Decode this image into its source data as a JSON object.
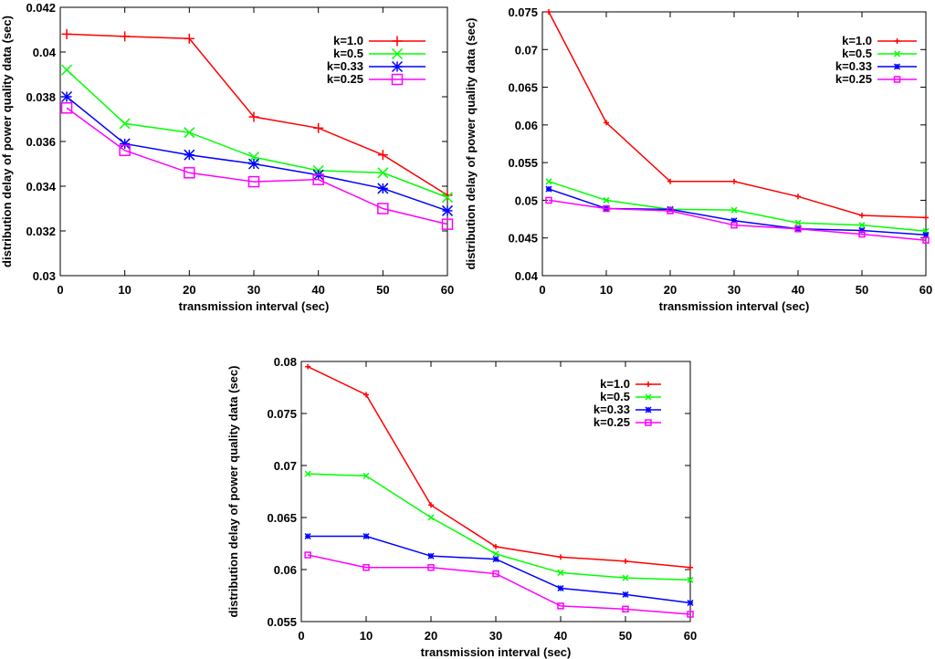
{
  "chart_data": [
    {
      "type": "line",
      "title": "",
      "xlabel": "transmission interval (sec)",
      "ylabel": "distribution delay of power quality data (sec)",
      "x": [
        1,
        10,
        20,
        30,
        40,
        50,
        60
      ],
      "xticks": [
        0,
        10,
        20,
        30,
        40,
        50,
        60
      ],
      "xlim": [
        0,
        60
      ],
      "ylim": [
        0.03,
        0.042
      ],
      "yticks": [
        0.03,
        0.032,
        0.034,
        0.036,
        0.038,
        0.04,
        0.042
      ],
      "ytick_labels": [
        "0.03",
        "0.032",
        "0.034",
        "0.036",
        "0.038",
        "0.04",
        "0.042"
      ],
      "legend_position": "top-right",
      "marker_size": "large",
      "series": [
        {
          "name": "k=1.0",
          "color": "#ff0000",
          "marker": "plus",
          "values": [
            0.0408,
            0.0407,
            0.0406,
            0.0371,
            0.0366,
            0.0354,
            0.0336
          ]
        },
        {
          "name": "k=0.5",
          "color": "#00ff00",
          "marker": "cross",
          "values": [
            0.0392,
            0.0368,
            0.0364,
            0.0353,
            0.0347,
            0.0346,
            0.0335
          ]
        },
        {
          "name": "k=0.33",
          "color": "#0000ff",
          "marker": "star",
          "values": [
            0.038,
            0.0359,
            0.0354,
            0.035,
            0.0345,
            0.0339,
            0.0329
          ]
        },
        {
          "name": "k=0.25",
          "color": "#ff00ff",
          "marker": "square",
          "values": [
            0.0375,
            0.0356,
            0.0346,
            0.0342,
            0.0343,
            0.033,
            0.0323
          ]
        }
      ]
    },
    {
      "type": "line",
      "title": "",
      "xlabel": "transmission interval (sec)",
      "ylabel": "distribution delay of power quality data (sec)",
      "x": [
        1,
        10,
        20,
        30,
        40,
        50,
        60
      ],
      "xticks": [
        0,
        10,
        20,
        30,
        40,
        50,
        60
      ],
      "xlim": [
        0,
        60
      ],
      "ylim": [
        0.04,
        0.075
      ],
      "yticks": [
        0.04,
        0.045,
        0.05,
        0.055,
        0.06,
        0.065,
        0.07,
        0.075
      ],
      "ytick_labels": [
        "0.04",
        "0.045",
        "0.05",
        "0.055",
        "0.06",
        "0.065",
        "0.07",
        "0.075"
      ],
      "legend_position": "top-right",
      "marker_size": "small",
      "series": [
        {
          "name": "k=1.0",
          "color": "#ff0000",
          "marker": "plus",
          "values": [
            0.075,
            0.0603,
            0.0525,
            0.0525,
            0.0505,
            0.048,
            0.0477
          ]
        },
        {
          "name": "k=0.5",
          "color": "#00ff00",
          "marker": "cross",
          "values": [
            0.0525,
            0.05,
            0.0488,
            0.0487,
            0.047,
            0.0467,
            0.0459
          ]
        },
        {
          "name": "k=0.33",
          "color": "#0000ff",
          "marker": "star",
          "values": [
            0.0515,
            0.0489,
            0.0488,
            0.0473,
            0.0462,
            0.046,
            0.0454
          ]
        },
        {
          "name": "k=0.25",
          "color": "#ff00ff",
          "marker": "square",
          "values": [
            0.05,
            0.0489,
            0.0486,
            0.0467,
            0.0462,
            0.0455,
            0.0447
          ]
        }
      ]
    },
    {
      "type": "line",
      "title": "",
      "xlabel": "transmission interval (sec)",
      "ylabel": "distribution delay of power quality data (sec)",
      "x": [
        1,
        10,
        20,
        30,
        40,
        50,
        60
      ],
      "xticks": [
        0,
        10,
        20,
        30,
        40,
        50,
        60
      ],
      "xlim": [
        0,
        60
      ],
      "ylim": [
        0.055,
        0.08
      ],
      "yticks": [
        0.055,
        0.06,
        0.065,
        0.07,
        0.075,
        0.08
      ],
      "ytick_labels": [
        "0.055",
        "0.06",
        "0.065",
        "0.07",
        "0.075",
        "0.08"
      ],
      "legend_position": "top-right",
      "marker_size": "small",
      "series": [
        {
          "name": "k=1.0",
          "color": "#ff0000",
          "marker": "plus",
          "values": [
            0.0795,
            0.0768,
            0.0662,
            0.0622,
            0.0612,
            0.0608,
            0.0602
          ]
        },
        {
          "name": "k=0.5",
          "color": "#00ff00",
          "marker": "cross",
          "values": [
            0.0692,
            0.069,
            0.065,
            0.0615,
            0.0597,
            0.0592,
            0.059
          ]
        },
        {
          "name": "k=0.33",
          "color": "#0000ff",
          "marker": "star",
          "values": [
            0.0632,
            0.0632,
            0.0613,
            0.061,
            0.0582,
            0.0576,
            0.0568
          ]
        },
        {
          "name": "k=0.25",
          "color": "#ff00ff",
          "marker": "square",
          "values": [
            0.0614,
            0.0602,
            0.0602,
            0.0596,
            0.0565,
            0.0562,
            0.0557
          ]
        }
      ]
    }
  ]
}
